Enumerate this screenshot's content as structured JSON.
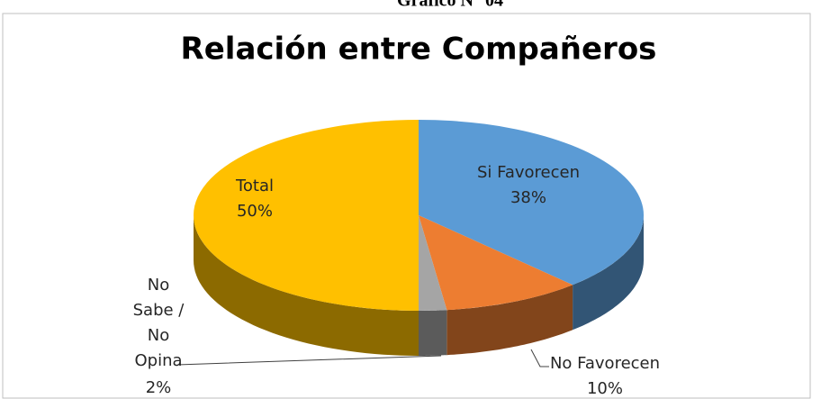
{
  "chart_data": {
    "type": "pie3d",
    "header": "Gráfico N° 04",
    "title": "Relación entre Compañeros",
    "categories": [
      "Si Favorecen",
      "No Favorecen",
      "No Sabe / No Opina",
      "Total"
    ],
    "values": [
      38,
      10,
      2,
      50
    ],
    "value_labels": [
      "38%",
      "10%",
      "2%",
      "50%"
    ],
    "colors": [
      "#5b9bd5",
      "#ed7d31",
      "#a5a5a5",
      "#ffc000"
    ]
  }
}
